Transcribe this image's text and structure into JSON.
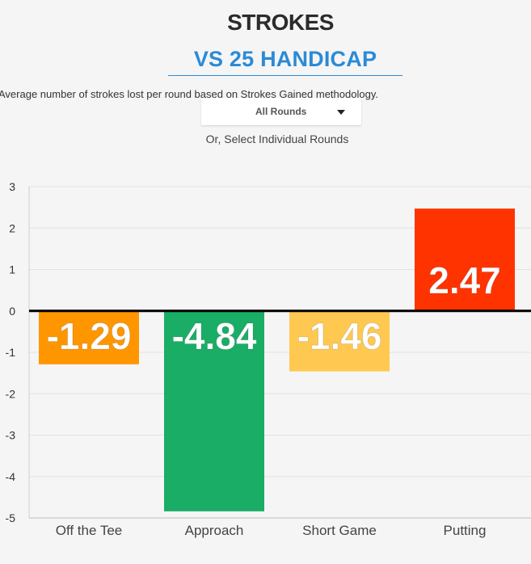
{
  "header": {
    "title": "STROKES",
    "subtitle": "VS 25 HANDICAP",
    "description": "Average number of strokes lost per round based on Strokes Gained methodology."
  },
  "filter": {
    "selected": "All Rounds",
    "hint": "Or, Select Individual Rounds"
  },
  "chart_data": {
    "type": "bar",
    "categories": [
      "Off the Tee",
      "Approach",
      "Short Game",
      "Putting"
    ],
    "values": [
      -1.29,
      -4.84,
      -1.46,
      2.47
    ],
    "value_labels": [
      "-1.29",
      "-4.84",
      "-1.46",
      "2.47"
    ],
    "colors": [
      "#ff9600",
      "#19ad66",
      "#ffc850",
      "#ff3300"
    ],
    "ylim": [
      -5,
      3
    ],
    "yticks": [
      3,
      2,
      1,
      0,
      -1,
      -2,
      -3,
      -4,
      -5
    ],
    "grid": true,
    "xlabel": "",
    "ylabel": ""
  }
}
